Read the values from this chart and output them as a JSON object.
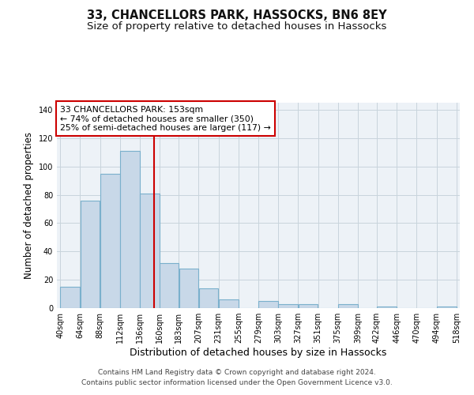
{
  "title": "33, CHANCELLORS PARK, HASSOCKS, BN6 8EY",
  "subtitle": "Size of property relative to detached houses in Hassocks",
  "xlabel": "Distribution of detached houses by size in Hassocks",
  "ylabel": "Number of detached properties",
  "bin_edges": [
    40,
    64,
    88,
    112,
    136,
    160,
    183,
    207,
    231,
    255,
    279,
    303,
    327,
    351,
    375,
    399,
    422,
    446,
    470,
    494,
    518
  ],
  "bar_heights": [
    15,
    76,
    95,
    111,
    81,
    32,
    28,
    14,
    6,
    0,
    5,
    3,
    3,
    0,
    3,
    0,
    1,
    0,
    0,
    1
  ],
  "bar_color": "#c8d8e8",
  "bar_edge_color": "#7ab0cc",
  "bar_linewidth": 0.8,
  "property_line_x": 153,
  "property_line_color": "#cc0000",
  "annotation_text": "33 CHANCELLORS PARK: 153sqm\n← 74% of detached houses are smaller (350)\n25% of semi-detached houses are larger (117) →",
  "annotation_box_color": "#cc0000",
  "annotation_text_color": "#000000",
  "ylim": [
    0,
    145
  ],
  "yticks": [
    0,
    20,
    40,
    60,
    80,
    100,
    120,
    140
  ],
  "xtick_labels": [
    "40sqm",
    "64sqm",
    "88sqm",
    "112sqm",
    "136sqm",
    "160sqm",
    "183sqm",
    "207sqm",
    "231sqm",
    "255sqm",
    "279sqm",
    "303sqm",
    "327sqm",
    "351sqm",
    "375sqm",
    "399sqm",
    "422sqm",
    "446sqm",
    "470sqm",
    "494sqm",
    "518sqm"
  ],
  "grid_color": "#c8d4dc",
  "background_color": "#edf2f7",
  "footer_line1": "Contains HM Land Registry data © Crown copyright and database right 2024.",
  "footer_line2": "Contains public sector information licensed under the Open Government Licence v3.0.",
  "title_fontsize": 10.5,
  "subtitle_fontsize": 9.5,
  "xlabel_fontsize": 9,
  "ylabel_fontsize": 8.5,
  "tick_fontsize": 7,
  "footer_fontsize": 6.5,
  "annotation_fontsize": 7.8
}
